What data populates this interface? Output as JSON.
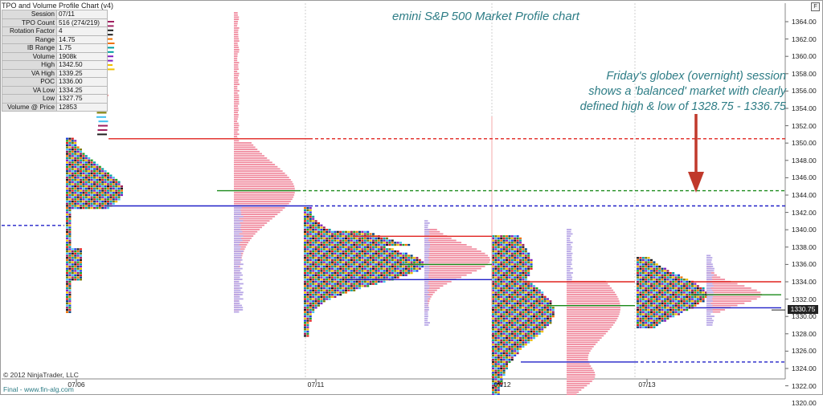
{
  "window": {
    "title": "TPO and Volume Profile Chart (v4)",
    "f_button": "F"
  },
  "stats": [
    {
      "label": "Session",
      "value": "07/11"
    },
    {
      "label": "TPO Count",
      "value": "516 (274/219)"
    },
    {
      "label": "Rotation Factor",
      "value": "4"
    },
    {
      "label": "Range",
      "value": "14.75"
    },
    {
      "label": "IB Range",
      "value": "1.75"
    },
    {
      "label": "Volume",
      "value": "1908k"
    },
    {
      "label": "High",
      "value": "1342.50"
    },
    {
      "label": "VA High",
      "value": "1339.25"
    },
    {
      "label": "POC",
      "value": "1336.00"
    },
    {
      "label": "VA Low",
      "value": "1334.25"
    },
    {
      "label": "Low",
      "value": "1327.75"
    },
    {
      "label": "Volume @ Price",
      "value": "12853"
    }
  ],
  "copyright": "© 2012 NinjaTrader, LLC",
  "footer": "Final - www.fin-alg.com",
  "last_price": "1330.75",
  "colors": {
    "red": "#e0231f",
    "green": "#1a8a1a",
    "blue": "#2020c8",
    "title": "#2e7d86",
    "arrow": "#c0392b",
    "pink": "#f08a9e",
    "lavender": "#b7a6e6"
  },
  "chart_data": {
    "type": "market-profile",
    "title": "emini S&P 500 Market Profile chart",
    "annotation": [
      "Friday's globex (overnight) session",
      "shows a 'balanced' market with clearly",
      "defined high & low of 1328.75 - 1336.75"
    ],
    "y_axis": {
      "range": [
        1319.5,
        1365.5
      ],
      "ticks": [
        "1364.00",
        "1362.00",
        "1360.00",
        "1358.00",
        "1356.00",
        "1354.00",
        "1352.00",
        "1350.00",
        "1348.00",
        "1346.00",
        "1344.00",
        "1342.00",
        "1340.00",
        "1338.00",
        "1336.00",
        "1334.00",
        "1332.00",
        "1330.00",
        "1328.00",
        "1326.00",
        "1324.00",
        "1322.00",
        "1320.00"
      ]
    },
    "x_ticks": [
      {
        "label": "07/06",
        "pos": 0
      },
      {
        "label": "07/11",
        "pos": 1
      },
      {
        "label": "07/12",
        "pos": 2
      },
      {
        "label": "07/13",
        "pos": 3
      }
    ],
    "sessions": [
      {
        "name": "07/06",
        "high": 1350.5,
        "low": 1330.5,
        "poc": 1344.5,
        "va_high": 1350.5,
        "va_low": 1342.75
      },
      {
        "name": "07/11",
        "high": 1342.5,
        "low": 1327.75,
        "poc": 1336.0,
        "va_high": 1339.25,
        "va_low": 1334.25
      },
      {
        "name": "07/12",
        "high": 1339.25,
        "low": 1320.0,
        "poc": 1331.25,
        "va_high": 1334.0,
        "va_low": 1324.75
      },
      {
        "name": "07/13",
        "high": 1336.75,
        "low": 1328.75,
        "poc": 1332.5,
        "va_high": 1334.0,
        "va_low": 1331.0
      }
    ],
    "last_price": 1330.75
  }
}
